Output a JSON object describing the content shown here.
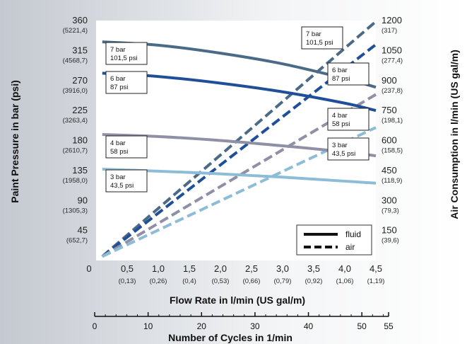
{
  "chart_data": {
    "type": "line",
    "x_axis": {
      "title": "Flow Rate in l/min (US gal/m)",
      "range": [
        0,
        4.5
      ],
      "origin_label": "0",
      "ticks": [
        {
          "value": 0.5,
          "label": "0,5",
          "sub": "(0,13)"
        },
        {
          "value": 1.0,
          "label": "1,0",
          "sub": "(0,26)"
        },
        {
          "value": 1.5,
          "label": "1,5",
          "sub": "(0,4)"
        },
        {
          "value": 2.0,
          "label": "2,0",
          "sub": "(0,53)"
        },
        {
          "value": 2.5,
          "label": "2,5",
          "sub": "(0,66)"
        },
        {
          "value": 3.0,
          "label": "3,0",
          "sub": "(0,79)"
        },
        {
          "value": 3.5,
          "label": "3,5",
          "sub": "(0,92)"
        },
        {
          "value": 4.0,
          "label": "4,0",
          "sub": "(1,06)"
        },
        {
          "value": 4.5,
          "label": "4,5",
          "sub": "(1,19)"
        }
      ]
    },
    "y_left_axis": {
      "title": "Paint Pressure in bar (psi)",
      "range": [
        0,
        360
      ],
      "ticks": [
        {
          "value": 360,
          "label": "360",
          "sub": "(5221,4)"
        },
        {
          "value": 315,
          "label": "315",
          "sub": "(4568,7)"
        },
        {
          "value": 270,
          "label": "270",
          "sub": "(3916,0)"
        },
        {
          "value": 225,
          "label": "225",
          "sub": "(3263,4)"
        },
        {
          "value": 180,
          "label": "180",
          "sub": "(2610,7)"
        },
        {
          "value": 135,
          "label": "135",
          "sub": "(1958,0)"
        },
        {
          "value": 90,
          "label": "90",
          "sub": "(1305,3)"
        },
        {
          "value": 45,
          "label": "45",
          "sub": "(652,7)"
        }
      ]
    },
    "y_right_axis": {
      "title": "Air Consumption in l/min (US gal/m)",
      "range": [
        0,
        1200
      ],
      "ticks": [
        {
          "value": 1200,
          "label": "1200",
          "sub": "(317)"
        },
        {
          "value": 1050,
          "label": "1050",
          "sub": "(277,4)"
        },
        {
          "value": 900,
          "label": "900",
          "sub": "(237,8)"
        },
        {
          "value": 750,
          "label": "750",
          "sub": "(198,1)"
        },
        {
          "value": 600,
          "label": "600",
          "sub": "(158,5)"
        },
        {
          "value": 450,
          "label": "450",
          "sub": "(118,9)"
        },
        {
          "value": 300,
          "label": "300",
          "sub": "(79,3)"
        },
        {
          "value": 150,
          "label": "150",
          "sub": "(39,6)"
        }
      ]
    },
    "cycles_axis": {
      "title": "Number of Cycles in 1/min",
      "range": [
        0,
        55
      ],
      "ticks": [
        {
          "value": 0,
          "label": "0"
        },
        {
          "value": 10,
          "label": "10"
        },
        {
          "value": 20,
          "label": "20"
        },
        {
          "value": 30,
          "label": "30"
        },
        {
          "value": 40,
          "label": "40"
        },
        {
          "value": 50,
          "label": "50"
        },
        {
          "value": 55,
          "label": "55"
        }
      ]
    },
    "series": [
      {
        "kind": "fluid",
        "color": "#4a6a88",
        "x": [
          0.1,
          1.0,
          2.0,
          3.0,
          4.0,
          4.5
        ],
        "y": [
          328,
          323,
          311,
          295,
          273,
          260
        ]
      },
      {
        "kind": "fluid",
        "color": "#1f4f98",
        "x": [
          0.1,
          1.0,
          2.0,
          3.0,
          4.0,
          4.5
        ],
        "y": [
          281,
          276,
          266,
          253,
          236,
          225
        ]
      },
      {
        "kind": "fluid",
        "color": "#8f8fa6",
        "x": [
          0.1,
          1.0,
          2.0,
          3.0,
          4.0,
          4.5
        ],
        "y": [
          189,
          186,
          180,
          172,
          163,
          157
        ]
      },
      {
        "kind": "fluid",
        "color": "#8dbcd6",
        "x": [
          0.1,
          1.0,
          2.0,
          3.0,
          4.0,
          4.5
        ],
        "y": [
          137,
          134,
          130,
          125,
          119,
          116
        ]
      },
      {
        "kind": "air",
        "color": "#4a6a88",
        "x": [
          0.1,
          4.5
        ],
        "y": [
          20,
          1195
        ]
      },
      {
        "kind": "air",
        "color": "#1f4f98",
        "x": [
          0.1,
          4.5
        ],
        "y": [
          20,
          1080
        ]
      },
      {
        "kind": "air",
        "color": "#8f8fa6",
        "x": [
          0.1,
          4.5
        ],
        "y": [
          20,
          830
        ]
      },
      {
        "kind": "air",
        "color": "#8dbcd6",
        "x": [
          0.1,
          4.5
        ],
        "y": [
          20,
          665
        ]
      }
    ],
    "pressure_labels": [
      {
        "line1": "7 bar",
        "line2": "101,5 psi"
      },
      {
        "line1": "6 bar",
        "line2": "87 psi"
      },
      {
        "line1": "4 bar",
        "line2": "58 psi"
      },
      {
        "line1": "3 bar",
        "line2": "43,5 psi"
      },
      {
        "line1": "7 bar",
        "line2": "101,5 psi"
      },
      {
        "line1": "6 bar",
        "line2": "87 psi"
      },
      {
        "line1": "4 bar",
        "line2": "58 psi"
      },
      {
        "line1": "3 bar",
        "line2": "43,5 psi"
      }
    ],
    "legend": {
      "position": "bottom-right",
      "items": [
        {
          "label": "fluid",
          "style": "solid"
        },
        {
          "label": "air",
          "style": "dashed"
        }
      ]
    },
    "grid": false
  }
}
